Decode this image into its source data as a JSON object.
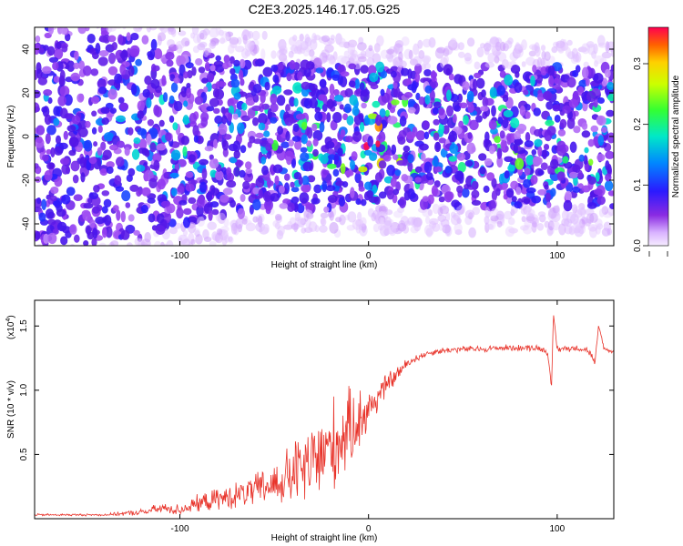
{
  "title": "C2E3.2025.146.17.05.G25",
  "chart_data": [
    {
      "type": "heatmap",
      "xlabel": "Height of straight line (km)",
      "ylabel": "Frequency (Hz)",
      "xlim": [
        -177,
        130
      ],
      "ylim": [
        -50,
        50
      ],
      "xticks": [
        -100,
        0,
        100
      ],
      "yticks": [
        -40,
        -20,
        0,
        20,
        40
      ],
      "grid": false,
      "colorbar": {
        "label": "Normalized spectral amplitude",
        "range": [
          0,
          0.36
        ],
        "ticks": [
          "0.0",
          "0.1",
          "0.2",
          "0.3"
        ],
        "colormap": "rainbow (violet to red)"
      },
      "description_series": [
        {
          "x": [
            -177,
            -150,
            -125,
            -100,
            -75,
            -50,
            -25,
            0,
            25,
            50,
            75,
            100,
            130
          ],
          "band_halfwidth_hz": [
            50,
            50,
            48,
            40,
            36,
            34,
            34,
            32,
            32,
            32,
            32,
            32,
            32
          ],
          "peak_amplitude": [
            0.08,
            0.09,
            0.12,
            0.16,
            0.18,
            0.16,
            0.18,
            0.34,
            0.2,
            0.19,
            0.19,
            0.2,
            0.19
          ]
        }
      ]
    },
    {
      "type": "line",
      "xlabel": "Height of straight line (km)",
      "ylabel": "SNR (10 * v/v)",
      "scale_note": "(x10",
      "scale_exp": "4",
      "xlim": [
        -177,
        130
      ],
      "ylim": [
        0,
        1.7
      ],
      "xticks": [
        -100,
        0,
        100
      ],
      "yticks": [
        "0.5",
        "1.0",
        "1.5"
      ],
      "grid": false,
      "color": "#e8332a",
      "series": [
        {
          "x": [
            -177,
            -160,
            -140,
            -120,
            -110,
            -100,
            -90,
            -80,
            -70,
            -60,
            -50,
            -45,
            -40,
            -35,
            -30,
            -25,
            -20,
            -15,
            -10,
            -5,
            0,
            5,
            10,
            15,
            20,
            25,
            30,
            35,
            40,
            50,
            60,
            70,
            80,
            90,
            95,
            97,
            98,
            100,
            110,
            115,
            118,
            120,
            122,
            125,
            130
          ],
          "y": [
            0.03,
            0.03,
            0.03,
            0.05,
            0.08,
            0.07,
            0.12,
            0.15,
            0.18,
            0.22,
            0.27,
            0.3,
            0.35,
            0.38,
            0.42,
            0.5,
            0.55,
            0.62,
            0.7,
            0.78,
            0.85,
            0.95,
            1.05,
            1.12,
            1.2,
            1.25,
            1.28,
            1.3,
            1.31,
            1.32,
            1.32,
            1.33,
            1.33,
            1.33,
            1.3,
            1.0,
            1.6,
            1.32,
            1.33,
            1.32,
            1.28,
            1.2,
            1.5,
            1.32,
            1.3
          ],
          "noise_amplitude": [
            0.01,
            0.01,
            0.01,
            0.03,
            0.05,
            0.05,
            0.08,
            0.1,
            0.12,
            0.15,
            0.2,
            0.25,
            0.3,
            0.35,
            0.4,
            0.42,
            0.45,
            0.42,
            0.35,
            0.3,
            0.22,
            0.15,
            0.1,
            0.08,
            0.05,
            0.04,
            0.03,
            0.03,
            0.03,
            0.03,
            0.03,
            0.03,
            0.03,
            0.03,
            0.03,
            0.02,
            0.02,
            0.03,
            0.03,
            0.03,
            0.03,
            0.03,
            0.03,
            0.02,
            0.02
          ]
        }
      ]
    }
  ]
}
